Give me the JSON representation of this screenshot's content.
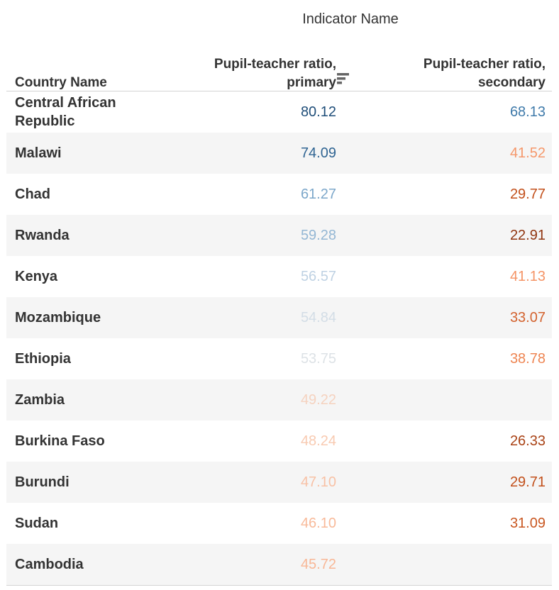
{
  "header": {
    "top_label": "Indicator Name",
    "country_col": "Country Name",
    "primary_col": [
      "Pupil-teacher ratio,",
      "primary"
    ],
    "secondary_col": [
      "Pupil-teacher ratio,",
      "secondary"
    ],
    "sort_icon": "sort-descending-icon"
  },
  "chart_data": {
    "type": "table",
    "columns": [
      "Country Name",
      "Pupil-teacher ratio, primary",
      "Pupil-teacher ratio, secondary"
    ],
    "rows": [
      {
        "country": "Central African Republic",
        "primary": "80.12",
        "secondary": "68.13"
      },
      {
        "country": "Malawi",
        "primary": "74.09",
        "secondary": "41.52"
      },
      {
        "country": "Chad",
        "primary": "61.27",
        "secondary": "29.77"
      },
      {
        "country": "Rwanda",
        "primary": "59.28",
        "secondary": "22.91"
      },
      {
        "country": "Kenya",
        "primary": "56.57",
        "secondary": "41.13"
      },
      {
        "country": "Mozambique",
        "primary": "54.84",
        "secondary": "33.07"
      },
      {
        "country": "Ethiopia",
        "primary": "53.75",
        "secondary": "38.78"
      },
      {
        "country": "Zambia",
        "primary": "49.22",
        "secondary": ""
      },
      {
        "country": "Burkina Faso",
        "primary": "48.24",
        "secondary": "26.33"
      },
      {
        "country": "Burundi",
        "primary": "47.10",
        "secondary": "29.71"
      },
      {
        "country": "Sudan",
        "primary": "46.10",
        "secondary": "31.09"
      },
      {
        "country": "Cambodia",
        "primary": "45.72",
        "secondary": ""
      }
    ],
    "sorted_by": "Pupil-teacher ratio, primary",
    "sort_order": "descending"
  },
  "colors": {
    "text": "#333333",
    "row_shade": "#f5f5f5",
    "divider": "#d4d4d4",
    "diverging_low": "#7b2a0c",
    "diverging_mid": "#ede9e6",
    "diverging_high": "#1f4e79"
  }
}
